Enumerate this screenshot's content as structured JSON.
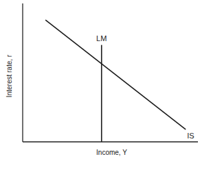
{
  "chart_data": {
    "type": "line",
    "x_label": "Income, Y",
    "y_label": "Interest rate, r",
    "xlim": [
      0,
      10
    ],
    "ylim": [
      0,
      10
    ],
    "tick_labels": false,
    "grid": false,
    "series": [
      {
        "name": "IS",
        "color": "#1a1a1a",
        "x": [
          1.3,
          9.3
        ],
        "values": [
          8.8,
          0.9
        ]
      },
      {
        "name": "LM",
        "color": "#1a1a1a",
        "x": [
          4.5,
          4.5
        ],
        "values": [
          0,
          7
        ]
      }
    ]
  }
}
